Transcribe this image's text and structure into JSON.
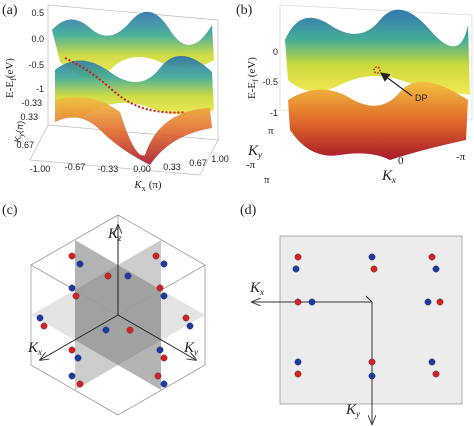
{
  "panels": {
    "a": {
      "label": "(a)",
      "z_axis": {
        "main": "E-E",
        "sub": "f",
        "unit": "(eV)"
      },
      "z_ticks": [
        "0.5",
        "0.0",
        "-0.5",
        "-1"
      ],
      "y_axis": {
        "main": "K",
        "sub": "y",
        "unit": "(π)"
      },
      "y_ticks": [
        "-0.33",
        "0.33",
        "0.67"
      ],
      "x_axis": {
        "main": "K",
        "sub": "x",
        "unit": "(π)"
      },
      "x_ticks": [
        "-1.00",
        "-0.67",
        "-0.33",
        "0.00",
        "0.33",
        "0.67",
        "1.00"
      ]
    },
    "b": {
      "label": "(b)",
      "z_axis": {
        "main": "E-E",
        "sub": "f",
        "unit": "(eV)"
      },
      "z_ticks": [
        "0",
        "-0.5",
        "-1"
      ],
      "y_axis": {
        "main": "K",
        "sub": "y"
      },
      "y_ticks": [
        "π",
        "-π"
      ],
      "x_axis": {
        "main": "K",
        "sub": "x"
      },
      "x_ticks": [
        "π",
        "0",
        "-π"
      ],
      "annotation": "DP"
    },
    "c": {
      "label": "(c)",
      "axes": [
        {
          "main": "K",
          "sub": "z"
        },
        {
          "main": "K",
          "sub": "x"
        },
        {
          "main": "K",
          "sub": "y"
        }
      ]
    },
    "d": {
      "label": "(d)",
      "axes": [
        {
          "main": "K",
          "sub": "x"
        },
        {
          "main": "K",
          "sub": "y"
        }
      ]
    }
  }
}
